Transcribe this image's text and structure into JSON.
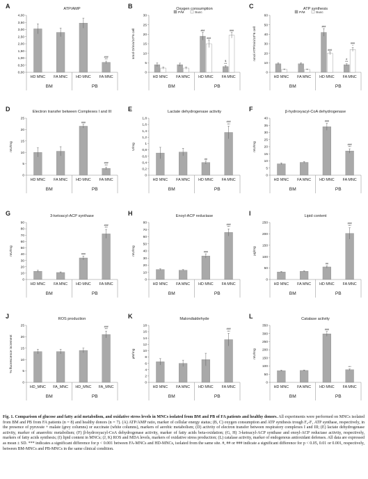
{
  "panels": [
    {
      "letter": "A",
      "title": "ATP/AMP",
      "ylabel": "",
      "yticks": [
        "0,00",
        "0,50",
        "1,00",
        "1,50",
        "2,00",
        "2,50",
        "3,00",
        "3,50",
        "4,00"
      ],
      "ymax": 4.0,
      "categories": [
        "HD MNC",
        "FA MNC",
        "HD MNC",
        "FA MNC"
      ],
      "groups": [
        "BM",
        "PB"
      ],
      "series": [
        {
          "values": [
            3.05,
            2.8,
            3.45,
            0.7
          ],
          "errors": [
            0.35,
            0.3,
            0.35,
            0.08
          ]
        }
      ],
      "annotations": [
        "",
        "",
        "",
        "###\n***"
      ]
    },
    {
      "letter": "B",
      "title": "Oxygen consumption",
      "ylabel": "nmol O/min/10^6 cell",
      "yticks": [
        "0",
        "5",
        "10",
        "15",
        "20",
        "25",
        "30"
      ],
      "ymax": 30,
      "categories": [
        "HD MNC",
        "FA MNC",
        "HD MNC",
        "FA MNC"
      ],
      "groups": [
        "BM",
        "PB"
      ],
      "legend": [
        "P/M",
        "Succ"
      ],
      "series": [
        {
          "name": "P/M",
          "values": [
            4.0,
            4.0,
            19.0,
            3.0
          ],
          "errors": [
            1.0,
            0.8,
            2.0,
            0.5
          ]
        },
        {
          "name": "Succ",
          "values": [
            2.2,
            2.2,
            15.0,
            19.5
          ],
          "errors": [
            0.6,
            0.6,
            2.0,
            1.5
          ]
        }
      ],
      "annotations": [
        [
          "",
          "",
          "###",
          "$\n***"
        ],
        [
          "",
          "",
          "###",
          "###"
        ]
      ]
    },
    {
      "letter": "C",
      "title": "ATP synthesis",
      "ylabel": "nmol ATP/min/10^6 cell",
      "yticks": [
        "0",
        "10",
        "20",
        "30",
        "40",
        "50",
        "60"
      ],
      "ymax": 60,
      "categories": [
        "HD MNC",
        "FA MNC",
        "HD MNC",
        "FA MNC"
      ],
      "groups": [
        "BM",
        "PB"
      ],
      "legend": [
        "P/M",
        "Succ"
      ],
      "series": [
        {
          "name": "P/M",
          "values": [
            9.0,
            9.0,
            42.0,
            8.0
          ],
          "errors": [
            1.0,
            1.0,
            4.0,
            1.0
          ]
        },
        {
          "name": "Succ",
          "values": [
            3.0,
            3.0,
            20.0,
            24.0
          ],
          "errors": [
            0.5,
            0.5,
            1.5,
            2.0
          ]
        }
      ],
      "annotations": [
        [
          "",
          "",
          "###",
          "#\n***"
        ],
        [
          "",
          "",
          "###",
          "###\n*"
        ]
      ]
    },
    {
      "letter": "D",
      "title": "Electron transfer between Complexes I and III",
      "ylabel": "mU/mg",
      "yticks": [
        "0",
        "5",
        "10",
        "15",
        "20",
        "25"
      ],
      "ymax": 25,
      "categories": [
        "HD MNC",
        "FA MNC",
        "HD MNC",
        "FA MNC"
      ],
      "groups": [
        "BM",
        "PB"
      ],
      "series": [
        {
          "values": [
            10.0,
            10.5,
            21.5,
            3.0
          ],
          "errors": [
            2.0,
            2.0,
            0.8,
            0.5
          ]
        }
      ],
      "annotations": [
        "",
        "",
        "###",
        "###\n***"
      ]
    },
    {
      "letter": "E",
      "title": "Lactate dehydrogenase activity",
      "ylabel": "U/mg",
      "yticks": [
        "0",
        "0,2",
        "0,4",
        "0,6",
        "0,8",
        "1",
        "1,2",
        "1,4",
        "1,6",
        "1,8"
      ],
      "ymax": 1.8,
      "categories": [
        "HD MNC",
        "FA MNC",
        "HD MNC",
        "FA MNC"
      ],
      "groups": [
        "BM",
        "PB"
      ],
      "series": [
        {
          "values": [
            0.7,
            0.73,
            0.4,
            1.35
          ],
          "errors": [
            0.18,
            0.12,
            0.05,
            0.2
          ]
        }
      ],
      "annotations": [
        "",
        "",
        "##",
        "###\n***"
      ]
    },
    {
      "letter": "F",
      "title": "β-hydroxyacyl-CoA dehydrogenase",
      "ylabel": "mU/mg",
      "yticks": [
        "0",
        "5",
        "10",
        "15",
        "20",
        "25",
        "30",
        "35",
        "40"
      ],
      "ymax": 40,
      "categories": [
        "HD MNC",
        "FA MNC",
        "HD MNC",
        "FA MNC"
      ],
      "groups": [
        "BM",
        "PB"
      ],
      "series": [
        {
          "values": [
            8.0,
            9.0,
            34.0,
            17.0
          ],
          "errors": [
            0.6,
            0.6,
            2.5,
            1.5
          ]
        }
      ],
      "annotations": [
        "",
        "",
        "###",
        "###\n***"
      ]
    },
    {
      "letter": "G",
      "title": "3-ketoacyl-ACP synthase",
      "ylabel": "mU/mg",
      "yticks": [
        "0",
        "10",
        "20",
        "30",
        "40",
        "50",
        "60",
        "70",
        "80",
        "90"
      ],
      "ymax": 90,
      "categories": [
        "HD MNC",
        "FA MNC",
        "HD MNC",
        "FA MNC"
      ],
      "groups": [
        "BM",
        "PB"
      ],
      "series": [
        {
          "values": [
            13.0,
            11.0,
            34.0,
            72.0
          ],
          "errors": [
            1.5,
            1.0,
            3.0,
            7.0
          ]
        }
      ],
      "annotations": [
        "",
        "",
        "###",
        "###\n***"
      ]
    },
    {
      "letter": "H",
      "title": "Enoyl-ACP reductase",
      "ylabel": "mU/mg",
      "yticks": [
        "0",
        "10",
        "20",
        "30",
        "40",
        "50",
        "60",
        "70",
        "80"
      ],
      "ymax": 80,
      "categories": [
        "HD MNC",
        "FA MNC",
        "HD MNC",
        "FA MNC"
      ],
      "groups": [
        "BM",
        "PB"
      ],
      "series": [
        {
          "values": [
            14.0,
            13.0,
            33.0,
            66.0
          ],
          "errors": [
            1.0,
            1.0,
            3.0,
            5.0
          ]
        }
      ],
      "annotations": [
        "",
        "",
        "###",
        "###\n***"
      ]
    },
    {
      "letter": "I",
      "title": "Lipid content",
      "ylabel": "µg/mg",
      "yticks": [
        "0",
        "50",
        "100",
        "150",
        "200",
        "250"
      ],
      "ymax": 250,
      "categories": [
        "HD MNC",
        "FA MNC",
        "HD MNC",
        "FA MNC"
      ],
      "groups": [
        "BM",
        "PB"
      ],
      "series": [
        {
          "values": [
            33.0,
            36.0,
            55.0,
            202.0
          ],
          "errors": [
            2.0,
            2.0,
            5.0,
            25.0
          ]
        }
      ],
      "annotations": [
        "",
        "",
        "##",
        "###\n***"
      ]
    },
    {
      "letter": "J",
      "title": "ROS production",
      "ylabel": "% fluorescence increment",
      "yticks": [
        "0",
        "5",
        "10",
        "15",
        "20",
        "25"
      ],
      "ymax": 25,
      "categories": [
        "HD_MNC",
        "FA_MNC",
        "HD_MNC",
        "FA_MNC"
      ],
      "groups": [
        "BM",
        "PB"
      ],
      "series": [
        {
          "values": [
            13.5,
            13.5,
            14.0,
            21.0
          ],
          "errors": [
            1.0,
            1.0,
            1.0,
            1.5
          ]
        }
      ],
      "annotations": [
        "",
        "",
        "",
        "###\n***"
      ]
    },
    {
      "letter": "K",
      "title": "Malondialdehyde",
      "ylabel": "µM/mg",
      "yticks": [
        "0",
        "2",
        "4",
        "6",
        "8",
        "10",
        "12",
        "14",
        "16",
        "18"
      ],
      "ymax": 18,
      "categories": [
        "HD MNC",
        "FA MNC",
        "HD MNC",
        "FA MNC"
      ],
      "groups": [
        "BM",
        "PB"
      ],
      "series": [
        {
          "values": [
            6.5,
            6.0,
            7.2,
            13.5
          ],
          "errors": [
            1.0,
            1.0,
            2.0,
            2.0
          ]
        }
      ],
      "annotations": [
        "",
        "",
        "",
        "###\n***"
      ]
    },
    {
      "letter": "L",
      "title": "Catalase activity",
      "ylabel": "mU/mg",
      "yticks": [
        "0",
        "50",
        "100",
        "150",
        "200",
        "250",
        "300",
        "350"
      ],
      "ymax": 350,
      "categories": [
        "HD MNC",
        "FA MNC",
        "HD MNC",
        "FA MNC"
      ],
      "groups": [
        "BM",
        "PB"
      ],
      "series": [
        {
          "values": [
            72.0,
            73.0,
            298.0,
            78.0
          ],
          "errors": [
            3.0,
            3.0,
            15.0,
            4.0
          ]
        }
      ],
      "annotations": [
        "",
        "",
        "###",
        "***"
      ]
    }
  ],
  "caption": {
    "lead": "Fig. 1. Comparison of glucose and fatty acid metabolism, and oxidative stress levels in MNCs isolated from BM and PB of FA patients and healthy donors.",
    "body": "All experiments were performed on MNCs isolated from BM and PB from FA patients (n = 8) and healthy donors (n = 7). (A) ATP/AMP ratio, marker of cellular energy status; (B, C) oxygen consumption and ATP synthesis trough F₀-F₁ ATP synthase, respectively, in the presence of pyruvate + malate (grey columns) or succinate (white columns), markers of aerobic metabolism; (D) activity of electron transfer between respiratory complexes I and III; (E) lactate dehydrogenase activity, marker of anaerobic metabolism; (F) β-hydroxyacyl-CoA dehydrogenase activity, marker of fatty acids beta-oxidation; (G, H) 3-ketoacyl-ACP synthase and enoyl-ACP reductase activity, respectively, markers of fatty acids synthesis; (I) lipid content in MNCs; (J, K) ROS and MDA levels, markers of oxidative stress production; (L) catalase activity, marker of endogenous antioxidant defenses. All data are expressed as mean ± SD. *** indicates a significant difference for p < 0.001 between FA-MNCs and HD-MNCs, isolated from the same site. #, ## or ### indicate a significant difference for p < 0.05, 0.01 or 0.001, respectively, between BM-MNCs and PB-MNCs in the same clinical condition."
  },
  "colors": {
    "bar_single": "#a9a9a9",
    "bar_pm": "#a9a9a9",
    "bar_succ": "#ffffff",
    "axis": "#888888",
    "text": "#222222"
  }
}
